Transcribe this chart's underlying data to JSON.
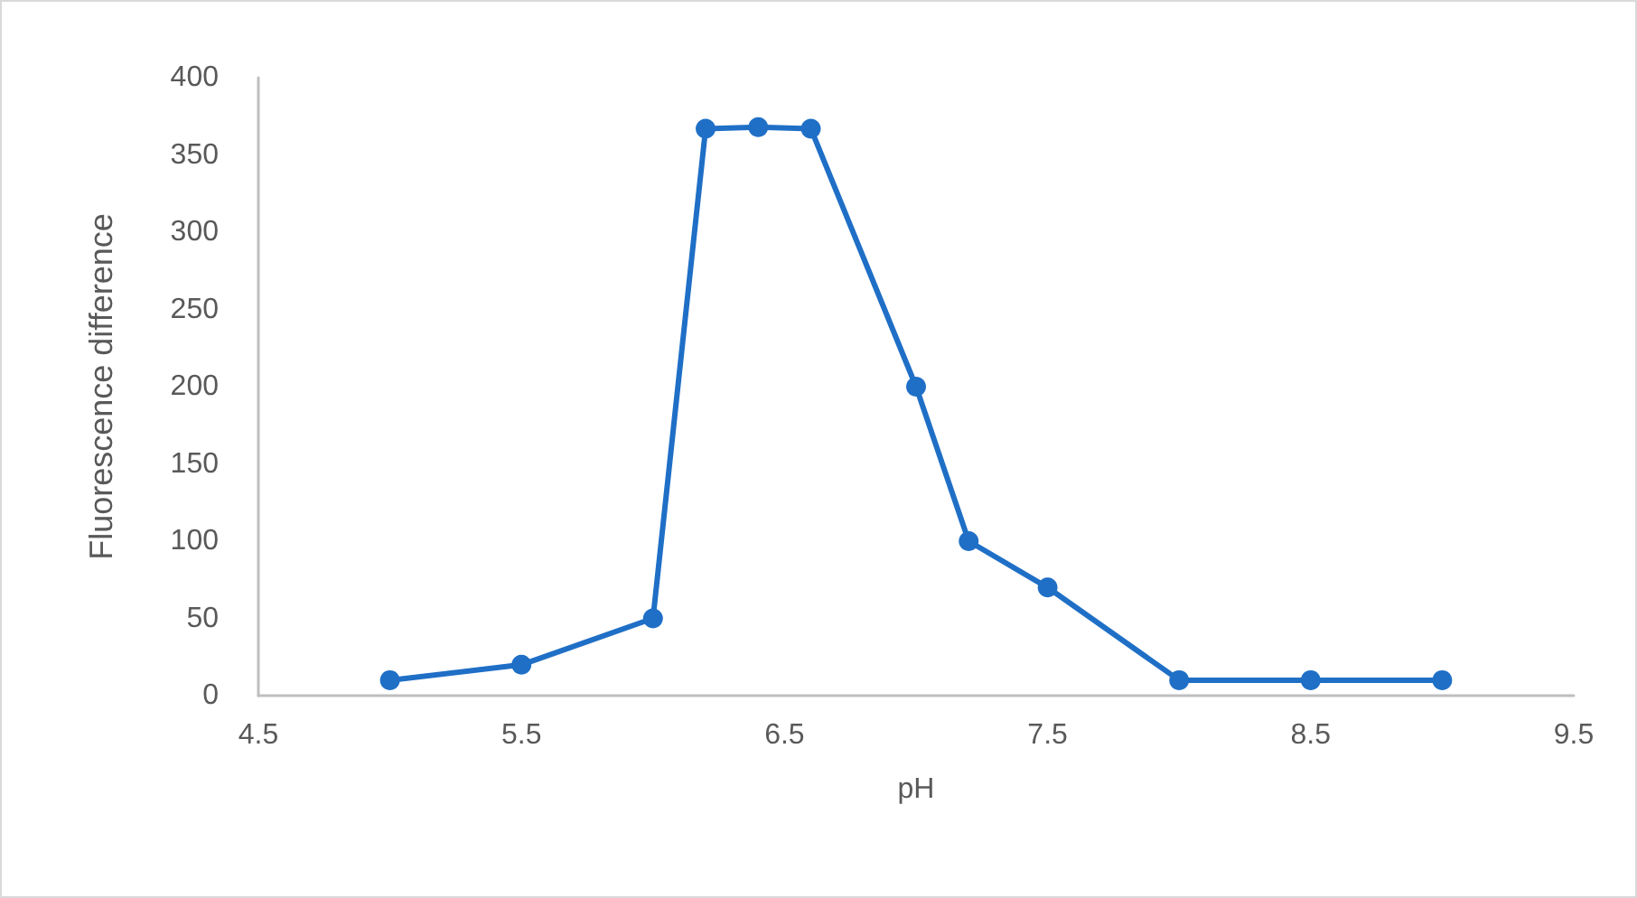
{
  "chart_data": {
    "type": "line",
    "xlabel": "pH",
    "ylabel": "Fluorescence difference",
    "x": [
      5,
      5.5,
      6,
      6.2,
      6.4,
      6.6,
      7,
      7.2,
      7.5,
      8,
      8.5,
      9
    ],
    "series": [
      {
        "color": "#1f6fc6",
        "values": [
          10,
          20,
          50,
          367,
          368,
          367,
          200,
          100,
          70,
          10,
          10,
          10
        ]
      }
    ],
    "xlim": [
      4.5,
      9.5
    ],
    "xticks": [
      4.5,
      5.5,
      6.5,
      7.5,
      8.5,
      9.5
    ],
    "ylim": [
      0,
      400
    ],
    "yticks": [
      0,
      50,
      100,
      150,
      200,
      250,
      300,
      350,
      400
    ],
    "grid": false,
    "marker": "circle",
    "line_style": "solid"
  }
}
